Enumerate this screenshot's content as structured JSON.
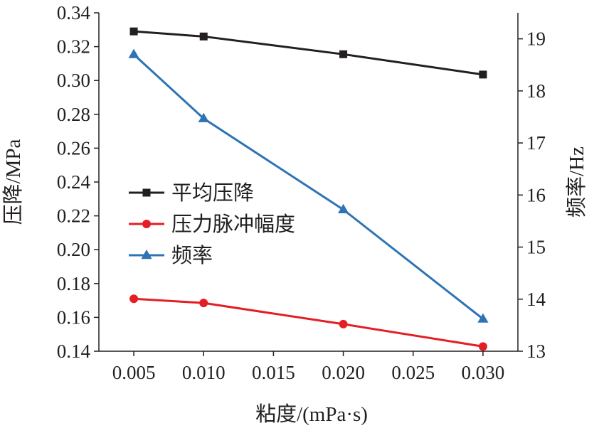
{
  "chart_data": {
    "type": "line",
    "xlabel": "粘度/(mPa·s)",
    "ylabel_left": "压降/MPa",
    "ylabel_right": "频率/Hz",
    "x_ticks": [
      "0.005",
      "0.010",
      "0.015",
      "0.020",
      "0.025",
      "0.030"
    ],
    "y_left_ticks": [
      "0.14",
      "0.16",
      "0.18",
      "0.20",
      "0.22",
      "0.24",
      "0.26",
      "0.28",
      "0.30",
      "0.32",
      "0.34"
    ],
    "y_right_ticks": [
      "13",
      "14",
      "15",
      "16",
      "17",
      "18",
      "19"
    ],
    "xlim": [
      0.0025,
      0.0325
    ],
    "ylim_left": [
      0.14,
      0.34
    ],
    "ylim_right": [
      13,
      19.5
    ],
    "legend_position": "center-left",
    "grid": false,
    "x": [
      0.005,
      0.01,
      0.02,
      0.03
    ],
    "series": [
      {
        "name": "平均压降",
        "axis": "left",
        "marker": "square",
        "color": "#231f20",
        "values": [
          0.329,
          0.326,
          0.3155,
          0.3035
        ]
      },
      {
        "name": "压力脉冲幅度",
        "axis": "left",
        "marker": "circle",
        "color": "#e31e24",
        "values": [
          0.171,
          0.1685,
          0.156,
          0.1428
        ]
      },
      {
        "name": "频率",
        "axis": "right",
        "marker": "triangle",
        "color": "#2e74b5",
        "values": [
          18.7,
          17.47,
          15.72,
          13.62
        ]
      }
    ]
  }
}
